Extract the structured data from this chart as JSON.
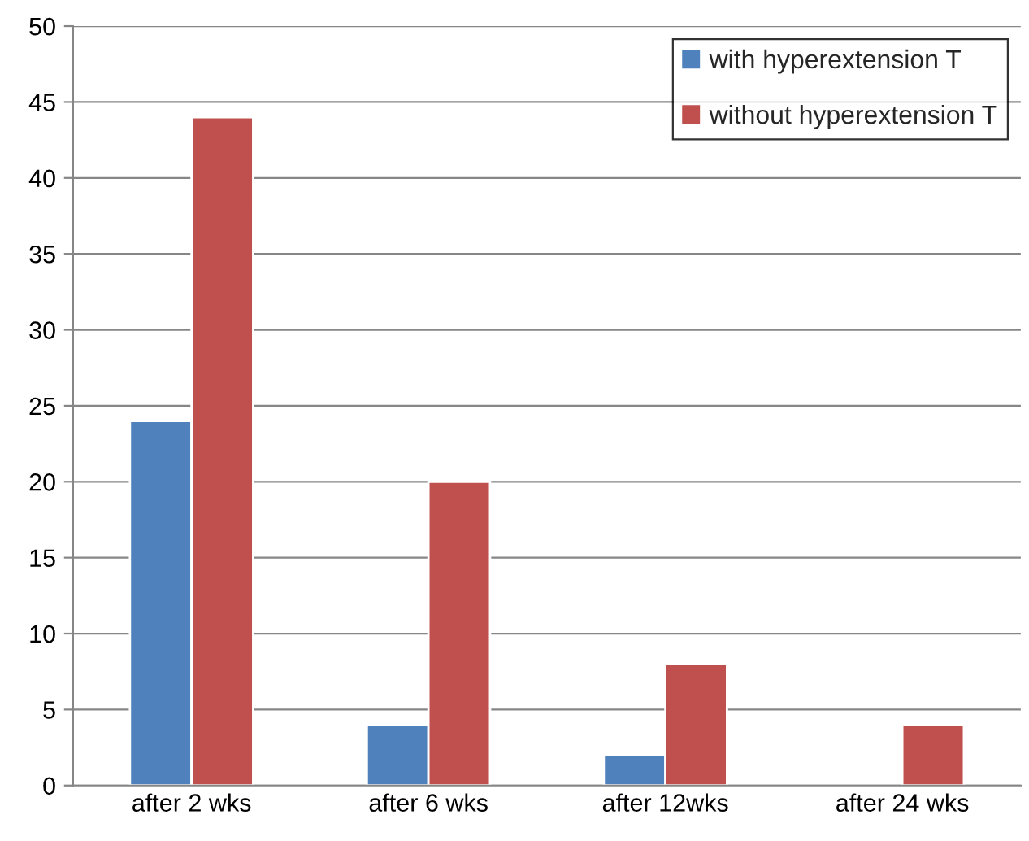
{
  "chart_data": {
    "type": "bar",
    "categories": [
      "after 2 wks",
      "after 6 wks",
      "after 12wks",
      "after 24 wks"
    ],
    "series": [
      {
        "name": "with hyperextension T",
        "color": "#4f81bd",
        "values": [
          24,
          4,
          2,
          null
        ]
      },
      {
        "name": "without hyperextension T",
        "color": "#c0504d",
        "values": [
          44,
          20,
          8,
          4
        ]
      }
    ],
    "ylim": [
      0,
      50
    ],
    "yticks": [
      0,
      5,
      10,
      15,
      20,
      25,
      30,
      35,
      40,
      45,
      50
    ],
    "grid": "y",
    "legend": "top right"
  }
}
